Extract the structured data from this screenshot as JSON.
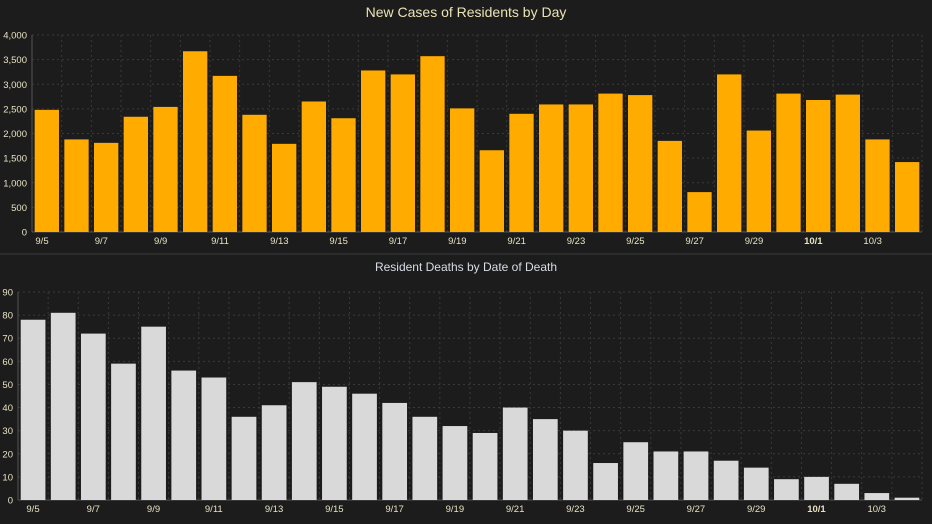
{
  "chart_data": [
    {
      "type": "bar",
      "title": "New Cases of Residents by Day",
      "xlabel": "",
      "ylabel": "",
      "ylim": [
        0,
        4000
      ],
      "yticks": [
        "0",
        "500",
        "1,000",
        "1,500",
        "2,000",
        "2,500",
        "3,000",
        "3,500",
        "4,000"
      ],
      "ytick_values": [
        0,
        500,
        1000,
        1500,
        2000,
        2500,
        3000,
        3500,
        4000
      ],
      "categories": [
        "9/5",
        "9/6",
        "9/7",
        "9/8",
        "9/9",
        "9/10",
        "9/11",
        "9/12",
        "9/13",
        "9/14",
        "9/15",
        "9/16",
        "9/17",
        "9/18",
        "9/19",
        "9/20",
        "9/21",
        "9/22",
        "9/23",
        "9/24",
        "9/25",
        "9/26",
        "9/27",
        "9/28",
        "9/29",
        "9/30",
        "10/1",
        "10/2",
        "10/3",
        "10/4"
      ],
      "xtick_labels": [
        "9/5",
        "",
        "9/7",
        "",
        "9/9",
        "",
        "9/11",
        "",
        "9/13",
        "",
        "9/15",
        "",
        "9/17",
        "",
        "9/19",
        "",
        "9/21",
        "",
        "9/23",
        "",
        "9/25",
        "",
        "9/27",
        "",
        "9/29",
        "",
        "10/1",
        "",
        "10/3",
        ""
      ],
      "bold_tick": "10/1",
      "values": [
        2480,
        1880,
        1810,
        2340,
        2540,
        3670,
        3170,
        2380,
        1790,
        2650,
        2310,
        3280,
        3200,
        3570,
        2510,
        1660,
        2400,
        2590,
        2590,
        2810,
        2780,
        1850,
        810,
        3200,
        2060,
        2810,
        2680,
        2790,
        1880,
        1420
      ],
      "bar_color": "#ffab00",
      "grid": true
    },
    {
      "type": "bar",
      "title": "Resident Deaths by Date of Death",
      "xlabel": "",
      "ylabel": "",
      "ylim": [
        0,
        90
      ],
      "yticks": [
        "0",
        "10",
        "20",
        "30",
        "40",
        "50",
        "60",
        "70",
        "80",
        "90"
      ],
      "ytick_values": [
        0,
        10,
        20,
        30,
        40,
        50,
        60,
        70,
        80,
        90
      ],
      "categories": [
        "9/5",
        "9/6",
        "9/7",
        "9/8",
        "9/9",
        "9/10",
        "9/11",
        "9/12",
        "9/13",
        "9/14",
        "9/15",
        "9/16",
        "9/17",
        "9/18",
        "9/19",
        "9/20",
        "9/21",
        "9/22",
        "9/23",
        "9/24",
        "9/25",
        "9/26",
        "9/27",
        "9/28",
        "9/29",
        "9/30",
        "10/1",
        "10/2",
        "10/3",
        "10/4"
      ],
      "xtick_labels": [
        "9/5",
        "",
        "9/7",
        "",
        "9/9",
        "",
        "9/11",
        "",
        "9/13",
        "",
        "9/15",
        "",
        "9/17",
        "",
        "9/19",
        "",
        "9/21",
        "",
        "9/23",
        "",
        "9/25",
        "",
        "9/27",
        "",
        "9/29",
        "",
        "10/1",
        "",
        "10/3",
        ""
      ],
      "bold_tick": "10/1",
      "values": [
        78,
        81,
        72,
        59,
        75,
        56,
        53,
        36,
        41,
        51,
        49,
        46,
        42,
        36,
        32,
        29,
        40,
        35,
        30,
        16,
        25,
        21,
        21,
        17,
        14,
        9,
        10,
        7,
        3,
        1
      ],
      "bar_color": "#d9d9d9",
      "grid": true
    }
  ]
}
